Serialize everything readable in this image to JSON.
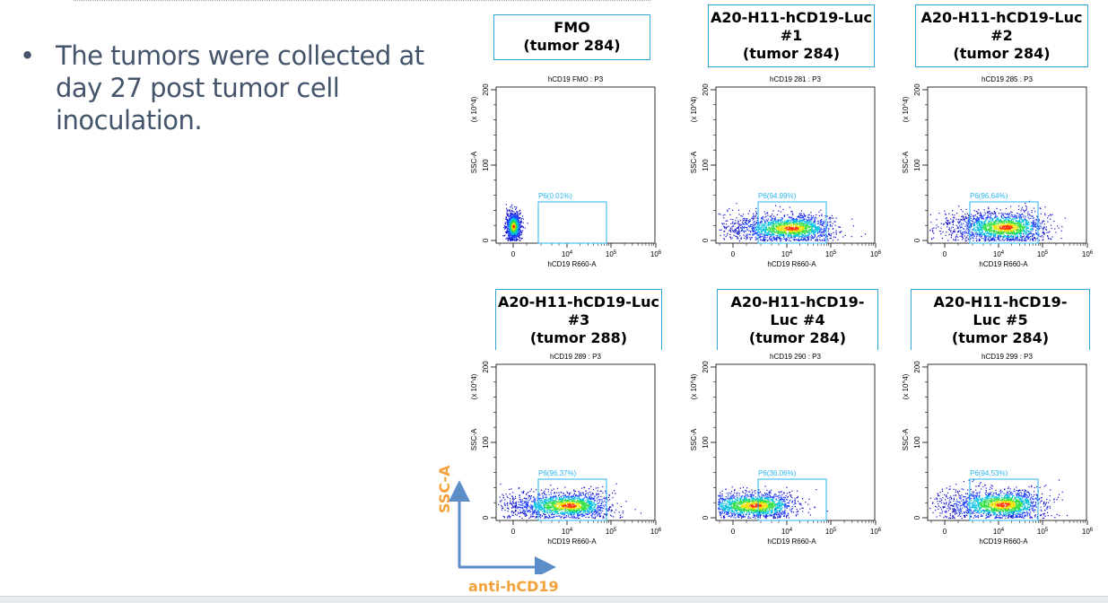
{
  "slide": {
    "bullet_symbol": "•",
    "bullet_text": "The tumors were collected at day 27 post tumor cell inoculation."
  },
  "panels": [
    {
      "header": "FMO\n(tumor 284)"
    },
    {
      "header": "A20-H11-hCD19-Luc\n#1\n(tumor 284)"
    },
    {
      "header": "A20-H11-hCD19-Luc\n#2\n(tumor 284)"
    },
    {
      "header": "A20-H11-hCD19-Luc\n#3\n(tumor 288)"
    },
    {
      "header": "A20-H11-hCD19-\nLuc #4\n(tumor 284)"
    },
    {
      "header": "A20-H11-hCD19-\nLuc #5\n(tumor 284)"
    }
  ],
  "axis_legend": {
    "y": "SSC-A",
    "x": "anti-hCD19",
    "color": "#f4a23b",
    "arrow_color": "#5b8ec9"
  },
  "chart_data": [
    {
      "type": "scatter",
      "subtype": "density-dot-plot",
      "title": "hCD19 FMO : P3",
      "xlabel": "hCD19 R660-A",
      "ylabel": "SSC-A",
      "yunit": "(x 10^4)",
      "xscale": "biexponential",
      "xticks": [
        "0",
        "10^4",
        "10^5",
        "10^6"
      ],
      "yticks": [
        "0",
        "100",
        "200"
      ],
      "ylim": [
        0,
        200
      ],
      "gate": {
        "name": "P6",
        "label": "P6(0.01%)",
        "percent": 0.01,
        "color": "#29b6f0"
      }
    },
    {
      "type": "scatter",
      "subtype": "density-dot-plot",
      "title": "hCD19 281 : P3",
      "xlabel": "hCD19 R660-A",
      "ylabel": "SSC-A",
      "yunit": "(x 10^4)",
      "xscale": "biexponential",
      "xticks": [
        "0",
        "10^4",
        "10^5",
        "10^6"
      ],
      "yticks": [
        "0",
        "100",
        "200"
      ],
      "ylim": [
        0,
        200
      ],
      "gate": {
        "name": "P6",
        "label": "P6(94.99%)",
        "percent": 94.99,
        "color": "#29b6f0"
      }
    },
    {
      "type": "scatter",
      "subtype": "density-dot-plot",
      "title": "hCD19 285 : P3",
      "xlabel": "hCD19 R660-A",
      "ylabel": "SSC-A",
      "yunit": "(x 10^4)",
      "xscale": "biexponential",
      "xticks": [
        "0",
        "10^4",
        "10^5",
        "10^6"
      ],
      "yticks": [
        "0",
        "100",
        "200"
      ],
      "ylim": [
        0,
        200
      ],
      "gate": {
        "name": "P6",
        "label": "P6(96.64%)",
        "percent": 96.64,
        "color": "#29b6f0"
      }
    },
    {
      "type": "scatter",
      "subtype": "density-dot-plot",
      "title": "hCD19 289 : P3",
      "xlabel": "hCD19 R660-A",
      "ylabel": "SSC-A",
      "yunit": "(x 10^4)",
      "xscale": "biexponential",
      "xticks": [
        "0",
        "10^4",
        "10^5",
        "10^6"
      ],
      "yticks": [
        "0",
        "100",
        "200"
      ],
      "ylim": [
        0,
        200
      ],
      "gate": {
        "name": "P6",
        "label": "P6(96.37%)",
        "percent": 96.37,
        "color": "#29b6f0"
      }
    },
    {
      "type": "scatter",
      "subtype": "density-dot-plot",
      "title": "hCD19 290 : P3",
      "xlabel": "hCD19 R660-A",
      "ylabel": "SSC-A",
      "yunit": "(x 10^4)",
      "xscale": "biexponential",
      "xticks": [
        "0",
        "10^4",
        "10^5",
        "10^6"
      ],
      "yticks": [
        "0",
        "100",
        "200"
      ],
      "ylim": [
        0,
        200
      ],
      "gate": {
        "name": "P6",
        "label": "P6(36.06%)",
        "percent": 36.06,
        "color": "#29b6f0"
      }
    },
    {
      "type": "scatter",
      "subtype": "density-dot-plot",
      "title": "hCD19 299 : P3",
      "xlabel": "hCD19 R660-A",
      "ylabel": "SSC-A",
      "yunit": "(x 10^4)",
      "xscale": "biexponential",
      "xticks": [
        "0",
        "10^4",
        "10^5",
        "10^6"
      ],
      "yticks": [
        "0",
        "100",
        "200"
      ],
      "ylim": [
        0,
        200
      ],
      "gate": {
        "name": "P6",
        "label": "P6(94.53%)",
        "percent": 94.53,
        "color": "#29b6f0"
      }
    }
  ]
}
